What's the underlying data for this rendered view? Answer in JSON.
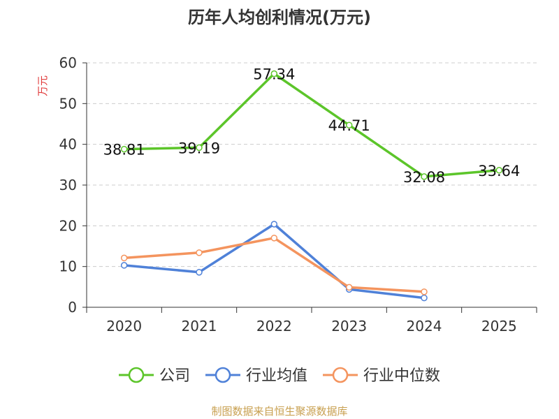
{
  "chart_data": {
    "type": "line",
    "title": "历年人均创利情况(万元)",
    "ylabel": "万元",
    "ylim": [
      0,
      60
    ],
    "yticks": [
      0,
      10,
      20,
      30,
      40,
      50,
      60
    ],
    "grid": true,
    "legend_position": "bottom",
    "categories": [
      "2020",
      "2021",
      "2022",
      "2023",
      "2024",
      "2025"
    ],
    "series": [
      {
        "name": "公司",
        "color": "#5cc52a",
        "values": [
          38.81,
          39.19,
          57.34,
          44.71,
          32.08,
          33.64
        ],
        "labels": [
          "38.81",
          "39.19",
          "57.34",
          "44.71",
          "32.08",
          "33.64"
        ]
      },
      {
        "name": "行业均值",
        "color": "#4f81d8",
        "values": [
          10.3,
          8.6,
          20.4,
          4.4,
          2.3,
          null
        ]
      },
      {
        "name": "行业中位数",
        "color": "#f4945e",
        "values": [
          12.1,
          13.4,
          17.0,
          4.9,
          3.8,
          null
        ]
      }
    ]
  },
  "source": "制图数据来自恒生聚源数据库",
  "colors": {
    "title": "#333333",
    "ylabel": "#e03a3a",
    "grid": "#cccccc",
    "axis": "#333333",
    "source": "#c8a050"
  }
}
